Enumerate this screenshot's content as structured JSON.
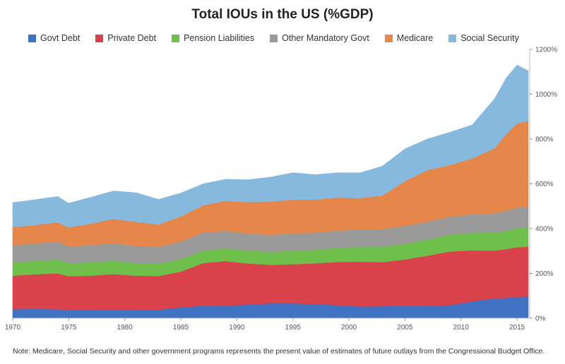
{
  "chart_data": {
    "type": "area",
    "stacked": true,
    "title": "Total IOUs in the US (%GDP)",
    "note": "Note: Medicare, Social Security and other government programs represents the present value of estimates of future outlays from the Congressional Budget Office.",
    "x": [
      1970,
      1972,
      1974,
      1975,
      1977,
      1979,
      1981,
      1983,
      1985,
      1987,
      1989,
      1991,
      1993,
      1995,
      1997,
      1999,
      2001,
      2003,
      2005,
      2007,
      2009,
      2011,
      2013,
      2014,
      2015,
      2016
    ],
    "x_ticks": [
      1970,
      1975,
      1980,
      1985,
      1990,
      1995,
      2000,
      2005,
      2010,
      2015
    ],
    "x_tick_labels": [
      "1970",
      "1975",
      "1980",
      "1985",
      "1990",
      "1995",
      "2000",
      "2005",
      "2010",
      "2015"
    ],
    "xlim": [
      1970,
      2016
    ],
    "ylim": [
      0,
      1200
    ],
    "y_ticks": [
      0,
      200,
      400,
      600,
      800,
      1000,
      1200
    ],
    "y_tick_labels": [
      "0%",
      "200%",
      "400%",
      "600%",
      "800%",
      "1000%",
      "1200%"
    ],
    "grid": false,
    "legend_position": "top",
    "series": [
      {
        "name": "Govt Debt",
        "color": "#3f72c3",
        "values": [
          40,
          42,
          40,
          37,
          38,
          39,
          38,
          38,
          48,
          56,
          57,
          60,
          66,
          66,
          63,
          58,
          52,
          54,
          55,
          57,
          58,
          75,
          88,
          90,
          95,
          97
        ]
      },
      {
        "name": "Private Debt",
        "color": "#d9424b",
        "values": [
          150,
          154,
          160,
          150,
          152,
          158,
          152,
          150,
          160,
          190,
          198,
          184,
          172,
          175,
          182,
          193,
          200,
          196,
          207,
          222,
          240,
          228,
          214,
          218,
          222,
          222
        ]
      },
      {
        "name": "Pension Liabilities",
        "color": "#6fbf4c",
        "values": [
          58,
          60,
          62,
          58,
          60,
          60,
          56,
          55,
          56,
          56,
          57,
          58,
          58,
          60,
          60,
          64,
          66,
          68,
          70,
          72,
          75,
          78,
          80,
          82,
          84,
          86
        ]
      },
      {
        "name": "Other Mandatory Govt",
        "color": "#9a9a9a",
        "values": [
          78,
          78,
          80,
          76,
          76,
          78,
          76,
          75,
          78,
          80,
          78,
          76,
          76,
          78,
          76,
          76,
          78,
          80,
          80,
          80,
          80,
          84,
          86,
          90,
          92,
          93
        ]
      },
      {
        "name": "Medicare",
        "color": "#e5874a",
        "values": [
          80,
          82,
          86,
          84,
          96,
          108,
          108,
          100,
          112,
          122,
          134,
          140,
          148,
          150,
          148,
          148,
          140,
          150,
          200,
          230,
          230,
          248,
          290,
          340,
          377,
          382
        ]
      },
      {
        "name": "Social Security",
        "color": "#86b9dd",
        "values": [
          110,
          113,
          115,
          108,
          118,
          125,
          130,
          112,
          104,
          96,
          96,
          100,
          110,
          120,
          112,
          110,
          113,
          131,
          144,
          139,
          147,
          150,
          222,
          250,
          260,
          225
        ]
      }
    ]
  }
}
